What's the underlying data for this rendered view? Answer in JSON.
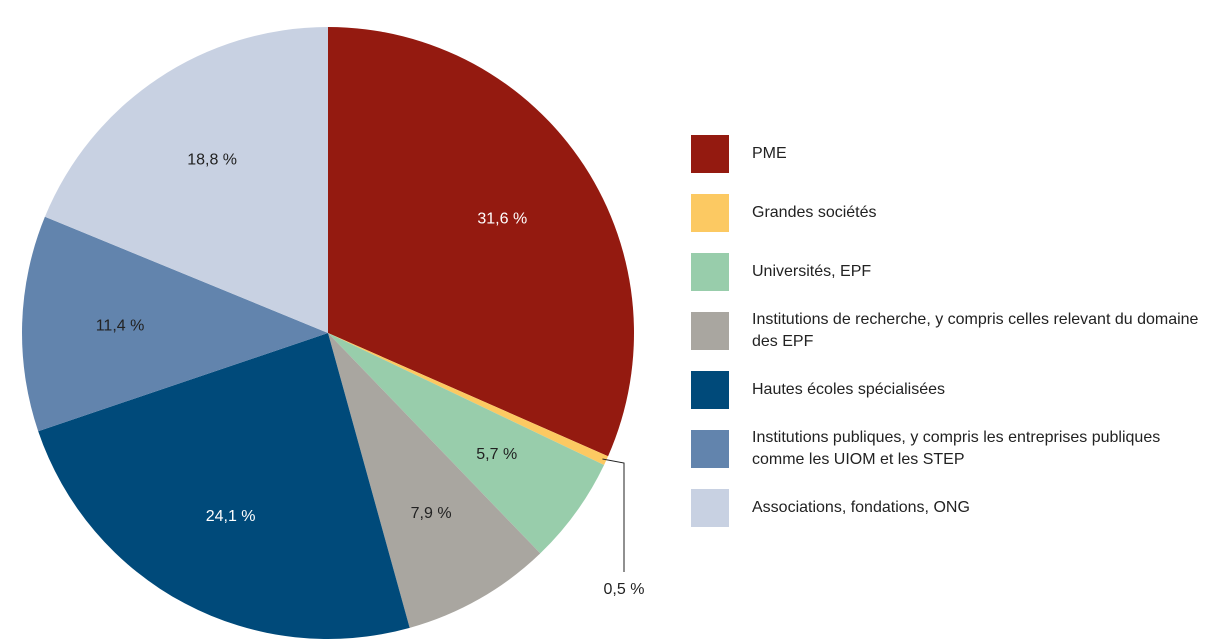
{
  "chart_data": {
    "type": "pie",
    "categories": [
      "PME",
      "Grandes sociétés",
      "Universités, EPF",
      "Institutions de recherche, y compris celles relevant du domaine des EPF",
      "Hautes écoles spécialisées",
      "Institutions publiques, y compris les entreprises publiques comme les UIOM et les STEP",
      "Associations, fondations, ONG"
    ],
    "values": [
      31.6,
      0.5,
      5.7,
      7.9,
      24.1,
      11.4,
      18.8
    ],
    "value_labels": [
      "31,6 %",
      "0,5 %",
      "5,7 %",
      "7,9 %",
      "24,1 %",
      "11,4 %",
      "18,8 %"
    ],
    "colors": [
      "#941a10",
      "#fcc962",
      "#98cdab",
      "#a9a6a0",
      "#004a7a",
      "#6284ad",
      "#c8d1e2"
    ],
    "legend": "right"
  }
}
